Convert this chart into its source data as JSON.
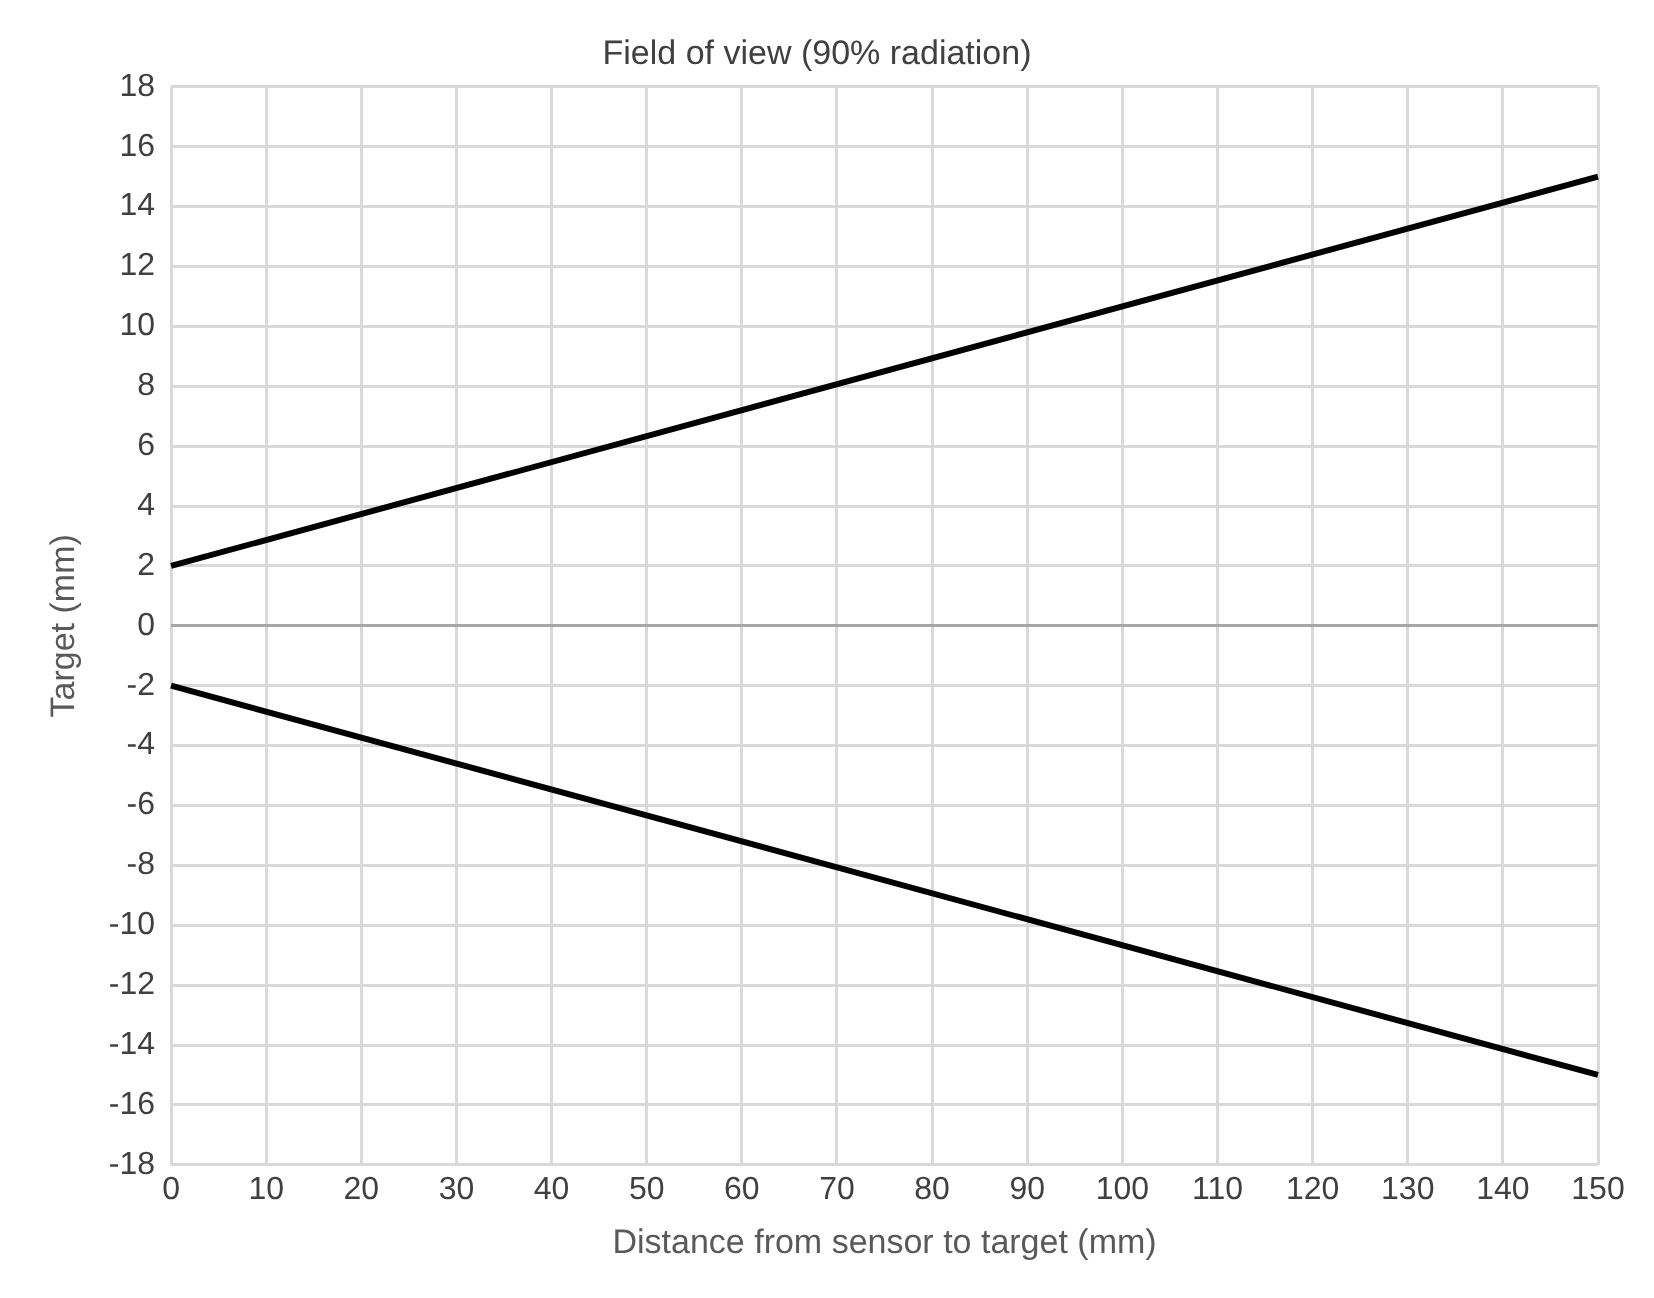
{
  "chart_data": {
    "type": "line",
    "title": "Field of view (90% radiation)",
    "xlabel": "Distance from sensor to target (mm)",
    "ylabel": "Target (mm)",
    "x": [
      0,
      150
    ],
    "series": [
      {
        "color": "#000000",
        "values": [
          2,
          15
        ]
      },
      {
        "color": "#000000",
        "values": [
          -2,
          -15
        ]
      }
    ],
    "xlim": [
      0,
      150
    ],
    "xticks": [
      0,
      10,
      20,
      30,
      40,
      50,
      60,
      70,
      80,
      90,
      100,
      110,
      120,
      130,
      140,
      150
    ],
    "ylim": [
      -18,
      18
    ],
    "yticks": [
      -18,
      -16,
      -14,
      -12,
      -10,
      -8,
      -6,
      -4,
      -2,
      0,
      2,
      4,
      6,
      8,
      10,
      12,
      14,
      16,
      18
    ],
    "grid": true,
    "legend": false,
    "marker": "none",
    "line_style": "solid"
  }
}
